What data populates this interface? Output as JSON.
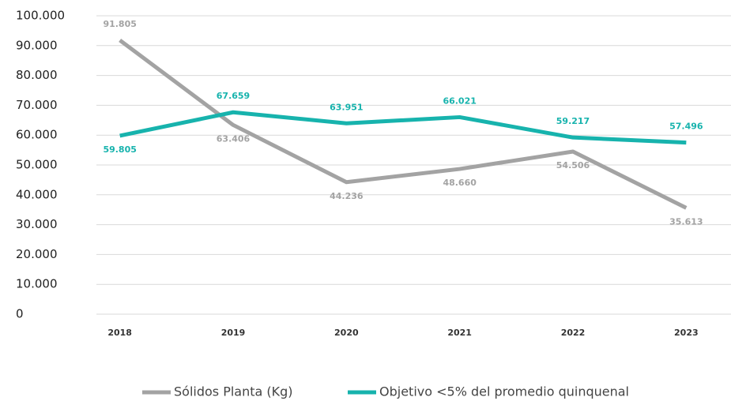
{
  "chart_data": {
    "type": "line",
    "categories": [
      "2018",
      "2019",
      "2020",
      "2021",
      "2022",
      "2023"
    ],
    "series": [
      {
        "name": "Sólidos Planta (Kg)",
        "color": "#a3a3a3",
        "values": [
          91805,
          63406,
          44236,
          48660,
          54506,
          35613
        ],
        "value_labels": [
          "91.805",
          "63.406",
          "44.236",
          "48.660",
          "54.506",
          "35.613"
        ]
      },
      {
        "name": "Objetivo <5% del promedio quinquenal",
        "color": "#17b3ad",
        "values": [
          59805,
          67659,
          63951,
          66021,
          59217,
          57496
        ],
        "value_labels": [
          "59.805",
          "67.659",
          "63.951",
          "66.021",
          "59.217",
          "57.496"
        ]
      }
    ],
    "ylim": [
      0,
      100000
    ],
    "yticks": [
      0,
      {
        "value": 10000,
        "label": "10.000"
      },
      {
        "value": 20000,
        "label": "20.000"
      },
      {
        "value": 30000,
        "label": "30.000"
      },
      {
        "value": 40000,
        "label": "40.000"
      },
      {
        "value": 50000,
        "label": "50.000"
      },
      {
        "value": 60000,
        "label": "60.000"
      },
      {
        "value": 70000,
        "label": "70.000"
      },
      {
        "value": 80000,
        "label": "80.000"
      },
      {
        "value": 90000,
        "label": "90.000"
      },
      {
        "value": 100000,
        "label": "100.000"
      }
    ],
    "grid": true,
    "legend": "bottom"
  }
}
